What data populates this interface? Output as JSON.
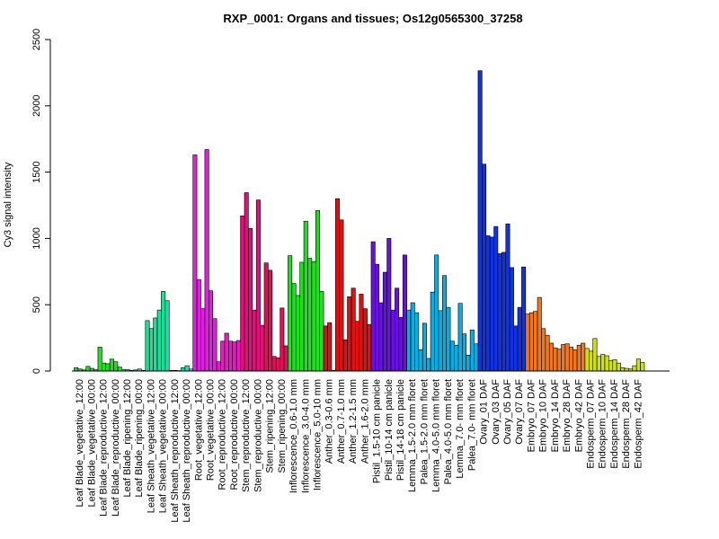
{
  "chart_data": {
    "type": "bar",
    "title": "RXP_0001: Organs and tissues; Os12g0565300_37258",
    "xlabel": "",
    "ylabel": "Cy3 signal intensity",
    "ylim": [
      0,
      2500
    ],
    "yticks": [
      0,
      500,
      1000,
      1500,
      2000,
      2500
    ],
    "grid": false,
    "legend": "none",
    "groups": [
      {
        "label": "Leaf Blade_vegetative_12:00",
        "color": "#2ecc40",
        "values": [
          25,
          15,
          8
        ]
      },
      {
        "label": "Leaf Blade_vegetative_00:00",
        "color": "#2ecc40",
        "values": [
          35,
          20,
          10
        ]
      },
      {
        "label": "Leaf Blade_reproductive_12:00",
        "color": "#22dd22",
        "values": [
          180,
          60,
          55
        ]
      },
      {
        "label": "Leaf Blade_reproductive_00:00",
        "color": "#22dd22",
        "values": [
          90,
          70,
          30
        ]
      },
      {
        "label": "Leaf Blade_ripening_12:00",
        "color": "#33dd77",
        "values": [
          10,
          12,
          5
        ]
      },
      {
        "label": "Leaf Blade_ripening_00:00",
        "color": "#33dd77",
        "values": [
          8,
          15,
          5
        ]
      },
      {
        "label": "Leaf Sheath_vegetative_12:00",
        "color": "#22dd99",
        "values": [
          380,
          320,
          400
        ]
      },
      {
        "label": "Leaf Sheath_vegetative_00:00",
        "color": "#22dd99",
        "values": [
          460,
          600,
          530
        ]
      },
      {
        "label": "Leaf Sheath_reproductive_12:00",
        "color": "#22ddaa",
        "values": [
          5,
          5,
          3
        ]
      },
      {
        "label": "Leaf Sheath_reproductive_00:00",
        "color": "#22ddaa",
        "values": [
          25,
          40,
          15
        ]
      },
      {
        "label": "Root_vegetative_12:00",
        "color": "#dd22dd",
        "values": [
          1630,
          690,
          470
        ]
      },
      {
        "label": "Root_vegetative_00:00",
        "color": "#dd22dd",
        "values": [
          1670,
          605,
          395
        ]
      },
      {
        "label": "Root_reproductive_12:00",
        "color": "#dd22bb",
        "values": [
          70,
          225,
          285
        ]
      },
      {
        "label": "Root_reproductive_00:00",
        "color": "#dd22bb",
        "values": [
          225,
          220,
          230
        ]
      },
      {
        "label": "Stem_reproductive_12:00",
        "color": "#dd1177",
        "values": [
          1170,
          1345,
          1075
        ]
      },
      {
        "label": "Stem_reproductive_00:00",
        "color": "#dd1177",
        "values": [
          460,
          1290,
          345
        ]
      },
      {
        "label": "Stem_ripening_12:00",
        "color": "#dd1155",
        "values": [
          815,
          760,
          110
        ]
      },
      {
        "label": "Stem_ripening_00:00",
        "color": "#dd1155",
        "values": [
          100,
          475,
          190
        ]
      },
      {
        "label": "Inflorescence_0.6-1.0 mm",
        "color": "#22dd22",
        "values": [
          870,
          660,
          570
        ]
      },
      {
        "label": "Inflorescence_3.0-4.0 mm",
        "color": "#22dd22",
        "values": [
          820,
          1130,
          850
        ]
      },
      {
        "label": "Inflorescence_5.0-10 mm",
        "color": "#22dd22",
        "values": [
          825,
          1210,
          600
        ]
      },
      {
        "label": "Anther_0.3-0.6 mm",
        "color": "#dd1111",
        "values": [
          340,
          365,
          5
        ]
      },
      {
        "label": "Anther_0.7-1.0 mm",
        "color": "#dd1111",
        "values": [
          1300,
          1140,
          235
        ]
      },
      {
        "label": "Anther_1.2-1.5 mm",
        "color": "#dd1111",
        "values": [
          560,
          625,
          375
        ]
      },
      {
        "label": "Anther_1.6-2.0 mm",
        "color": "#dd1111",
        "values": [
          580,
          470,
          350
        ]
      },
      {
        "label": "Pistil_1.5-10 cm panicle",
        "color": "#6611dd",
        "values": [
          975,
          805,
          515
        ]
      },
      {
        "label": "Pistil_10-14 cm panicle",
        "color": "#6611dd",
        "values": [
          745,
          1000,
          460
        ]
      },
      {
        "label": "Pistil_14-18 cm panicle",
        "color": "#6611dd",
        "values": [
          625,
          405,
          875
        ]
      },
      {
        "label": "Lemma_1.5-2.0 mm floret",
        "color": "#11aadd",
        "values": [
          460,
          515,
          440
        ]
      },
      {
        "label": "Palea_1.5-2.0 mm floret",
        "color": "#11aadd",
        "values": [
          160,
          360,
          95
        ]
      },
      {
        "label": "Lemma_4.0-5.0 mm floret",
        "color": "#11aadd",
        "values": [
          595,
          875,
          455
        ]
      },
      {
        "label": "Palea_4.0-5.0 mm floret",
        "color": "#11aadd",
        "values": [
          720,
          480,
          225
        ]
      },
      {
        "label": "Lemma_7.0- mm floret",
        "color": "#11aadd",
        "values": [
          195,
          510,
          280
        ]
      },
      {
        "label": "Palea_7.0- mm floret",
        "color": "#11aadd",
        "values": [
          120,
          310,
          205
        ]
      },
      {
        "label": "Ovary_01 DAF",
        "color": "#1133dd",
        "values": [
          2265,
          1560,
          1020
        ]
      },
      {
        "label": "Ovary_03 DAF",
        "color": "#1133dd",
        "values": [
          1010,
          1090,
          885
        ]
      },
      {
        "label": "Ovary_05 DAF",
        "color": "#1133dd",
        "values": [
          895,
          1110,
          780
        ]
      },
      {
        "label": "Ovary_07 DAF",
        "color": "#1133dd",
        "values": [
          340,
          480,
          785
        ]
      },
      {
        "label": "Embryo_07 DAF",
        "color": "#ee7722",
        "values": [
          430,
          440,
          450
        ]
      },
      {
        "label": "Embryo_10 DAF",
        "color": "#ee7722",
        "values": [
          555,
          320,
          270
        ]
      },
      {
        "label": "Embryo_14 DAF",
        "color": "#ee7722",
        "values": [
          210,
          175,
          165
        ]
      },
      {
        "label": "Embryo_28 DAF",
        "color": "#ee7722",
        "values": [
          200,
          205,
          180
        ]
      },
      {
        "label": "Embryo_42 DAF",
        "color": "#ee7722",
        "values": [
          160,
          195,
          210
        ]
      },
      {
        "label": "Endosperm_07 DAF",
        "color": "#ccdd22",
        "values": [
          170,
          150,
          245
        ]
      },
      {
        "label": "Endosperm_10 DAF",
        "color": "#ccdd22",
        "values": [
          110,
          125,
          115
        ]
      },
      {
        "label": "Endosperm_14 DAF",
        "color": "#ccdd22",
        "values": [
          80,
          85,
          60
        ]
      },
      {
        "label": "Endosperm_28 DAF",
        "color": "#ccdd22",
        "values": [
          25,
          20,
          15
        ]
      },
      {
        "label": "Endosperm_42 DAF",
        "color": "#ccdd22",
        "values": [
          40,
          90,
          65
        ]
      }
    ]
  }
}
